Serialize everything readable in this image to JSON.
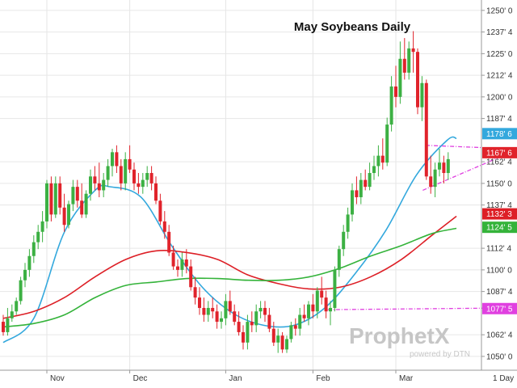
{
  "chart_data": {
    "type": "candlestick",
    "title": "May Soybeans Daily",
    "interval_label": "1 Day",
    "watermark": {
      "brand": "ProphetX",
      "tagline": "powered by DTN"
    },
    "x_tick_labels": [
      "Nov",
      "Dec",
      "Jan",
      "Feb",
      "Mar"
    ],
    "y_tick_labels": [
      "1250' 0",
      "1237' 4",
      "1225' 0",
      "1212' 4",
      "1200' 0",
      "1187' 4",
      "1162' 4",
      "1150' 0",
      "1137' 4",
      "1112' 4",
      "1100' 0",
      "1087' 4",
      "1062' 4",
      "1050' 0"
    ],
    "y_range": [
      1042,
      1255
    ],
    "colors": {
      "up": "#3cb043",
      "down": "#e0232b",
      "ma_blue": "#33a8dd",
      "ma_red": "#dd1f26",
      "ma_green": "#34b33a",
      "trend": "#e040e0"
    },
    "last_value_labels": [
      {
        "text": "1178' 6",
        "value": 1178.75,
        "color": "#33a8dd"
      },
      {
        "text": "1167' 6",
        "value": 1167.75,
        "color": "#e0232b"
      },
      {
        "text": "1132' 3",
        "value": 1132.375,
        "color": "#dd1f26"
      },
      {
        "text": "1124' 5",
        "value": 1124.625,
        "color": "#34b33a"
      },
      {
        "text": "1077' 5",
        "value": 1077.625,
        "color": "#e040e0"
      }
    ],
    "moving_averages": [
      {
        "color": "#33a8dd",
        "x": [
          0,
          10,
          20,
          30,
          35,
          45,
          55,
          65,
          75,
          85,
          95,
          105,
          115,
          125,
          135,
          145,
          148
        ],
        "values": [
          1058,
          1072,
          1122,
          1146,
          1148,
          1142,
          1114,
          1090,
          1075,
          1068,
          1068,
          1078,
          1098,
          1123,
          1155,
          1175,
          1176
        ]
      },
      {
        "color": "#dd1f26",
        "x": [
          0,
          10,
          20,
          30,
          40,
          50,
          60,
          70,
          80,
          90,
          100,
          110,
          120,
          130,
          140,
          148
        ],
        "values": [
          1072,
          1076,
          1084,
          1096,
          1106,
          1111,
          1110,
          1106,
          1097,
          1092,
          1089,
          1090,
          1096,
          1106,
          1120,
          1131
        ]
      },
      {
        "color": "#34b33a",
        "x": [
          0,
          10,
          20,
          30,
          40,
          50,
          60,
          70,
          80,
          90,
          100,
          110,
          120,
          130,
          140,
          148
        ],
        "values": [
          1067,
          1069,
          1074,
          1084,
          1091,
          1093,
          1095,
          1095,
          1094,
          1094,
          1096,
          1101,
          1108,
          1114,
          1121,
          1124
        ]
      }
    ],
    "trend_lines": [
      {
        "x": [
          138,
          150
        ],
        "values": [
          1172,
          1170
        ]
      },
      {
        "x": [
          137,
          150
        ],
        "values": [
          1146,
          1168
        ]
      },
      {
        "x": [
          106,
          150
        ],
        "values": [
          1077,
          1078
        ]
      }
    ],
    "candles": [
      [
        0,
        1070,
        1074,
        1062,
        1064
      ],
      [
        1,
        1064,
        1078,
        1062,
        1072
      ],
      [
        2,
        1072,
        1080,
        1070,
        1076
      ],
      [
        3,
        1076,
        1084,
        1074,
        1082
      ],
      [
        4,
        1082,
        1096,
        1080,
        1094
      ],
      [
        5,
        1094,
        1104,
        1090,
        1100
      ],
      [
        6,
        1100,
        1112,
        1096,
        1108
      ],
      [
        7,
        1108,
        1120,
        1104,
        1116
      ],
      [
        8,
        1116,
        1126,
        1112,
        1122
      ],
      [
        9,
        1122,
        1134,
        1116,
        1128
      ],
      [
        10,
        1128,
        1152,
        1124,
        1150
      ],
      [
        11,
        1150,
        1154,
        1128,
        1132
      ],
      [
        12,
        1132,
        1154,
        1130,
        1150
      ],
      [
        13,
        1150,
        1154,
        1132,
        1136
      ],
      [
        14,
        1136,
        1144,
        1122,
        1126
      ],
      [
        15,
        1126,
        1140,
        1124,
        1138
      ],
      [
        16,
        1138,
        1152,
        1134,
        1148
      ],
      [
        17,
        1148,
        1152,
        1136,
        1140
      ],
      [
        18,
        1140,
        1150,
        1130,
        1132
      ],
      [
        19,
        1132,
        1146,
        1130,
        1144
      ],
      [
        20,
        1144,
        1158,
        1140,
        1154
      ],
      [
        21,
        1154,
        1160,
        1146,
        1150
      ],
      [
        22,
        1150,
        1162,
        1142,
        1146
      ],
      [
        23,
        1146,
        1156,
        1142,
        1152
      ],
      [
        24,
        1152,
        1164,
        1148,
        1160
      ],
      [
        25,
        1160,
        1170,
        1154,
        1168
      ],
      [
        26,
        1168,
        1172,
        1156,
        1160
      ],
      [
        27,
        1160,
        1164,
        1146,
        1150
      ],
      [
        28,
        1150,
        1168,
        1146,
        1164
      ],
      [
        29,
        1164,
        1172,
        1156,
        1158
      ],
      [
        30,
        1158,
        1162,
        1146,
        1150
      ],
      [
        31,
        1150,
        1156,
        1144,
        1148
      ],
      [
        32,
        1148,
        1156,
        1144,
        1152
      ],
      [
        33,
        1152,
        1160,
        1148,
        1156
      ],
      [
        34,
        1156,
        1160,
        1146,
        1150
      ],
      [
        35,
        1150,
        1154,
        1138,
        1140
      ],
      [
        36,
        1140,
        1144,
        1126,
        1128
      ],
      [
        37,
        1128,
        1134,
        1118,
        1122
      ],
      [
        38,
        1122,
        1126,
        1108,
        1110
      ],
      [
        39,
        1110,
        1114,
        1100,
        1102
      ],
      [
        40,
        1102,
        1106,
        1096,
        1100
      ],
      [
        41,
        1100,
        1110,
        1096,
        1106
      ],
      [
        42,
        1106,
        1112,
        1098,
        1102
      ],
      [
        43,
        1102,
        1106,
        1088,
        1090
      ],
      [
        44,
        1090,
        1096,
        1080,
        1084
      ],
      [
        45,
        1084,
        1090,
        1074,
        1078
      ],
      [
        46,
        1078,
        1084,
        1070,
        1074
      ],
      [
        47,
        1074,
        1082,
        1070,
        1078
      ],
      [
        48,
        1078,
        1084,
        1072,
        1076
      ],
      [
        49,
        1076,
        1080,
        1066,
        1070
      ],
      [
        50,
        1070,
        1076,
        1066,
        1072
      ],
      [
        51,
        1072,
        1086,
        1068,
        1082
      ],
      [
        52,
        1082,
        1088,
        1074,
        1076
      ],
      [
        53,
        1076,
        1080,
        1068,
        1070
      ],
      [
        54,
        1070,
        1076,
        1062,
        1064
      ],
      [
        55,
        1064,
        1068,
        1054,
        1058
      ],
      [
        56,
        1058,
        1074,
        1054,
        1070
      ],
      [
        57,
        1070,
        1076,
        1064,
        1068
      ],
      [
        58,
        1068,
        1080,
        1064,
        1076
      ],
      [
        59,
        1076,
        1082,
        1072,
        1078
      ],
      [
        60,
        1078,
        1082,
        1070,
        1074
      ],
      [
        61,
        1074,
        1078,
        1064,
        1066
      ],
      [
        62,
        1066,
        1070,
        1056,
        1058
      ],
      [
        63,
        1058,
        1066,
        1052,
        1062
      ],
      [
        64,
        1062,
        1064,
        1052,
        1054
      ],
      [
        65,
        1054,
        1062,
        1052,
        1060
      ],
      [
        66,
        1060,
        1070,
        1058,
        1068
      ],
      [
        67,
        1068,
        1072,
        1062,
        1066
      ],
      [
        68,
        1066,
        1078,
        1062,
        1074
      ],
      [
        69,
        1074,
        1080,
        1070,
        1072
      ],
      [
        70,
        1072,
        1082,
        1068,
        1080
      ],
      [
        71,
        1080,
        1086,
        1072,
        1076
      ],
      [
        72,
        1076,
        1090,
        1072,
        1088
      ],
      [
        73,
        1088,
        1096,
        1080,
        1084
      ],
      [
        74,
        1084,
        1088,
        1072,
        1076
      ],
      [
        75,
        1076,
        1082,
        1068,
        1078
      ],
      [
        76,
        1078,
        1102,
        1076,
        1100
      ],
      [
        77,
        1100,
        1114,
        1096,
        1112
      ],
      [
        78,
        1112,
        1126,
        1108,
        1122
      ],
      [
        79,
        1122,
        1136,
        1118,
        1132
      ],
      [
        80,
        1132,
        1150,
        1128,
        1146
      ],
      [
        81,
        1146,
        1154,
        1138,
        1142
      ],
      [
        82,
        1142,
        1156,
        1138,
        1152
      ],
      [
        83,
        1152,
        1158,
        1146,
        1148
      ],
      [
        84,
        1148,
        1162,
        1146,
        1156
      ],
      [
        85,
        1156,
        1166,
        1152,
        1160
      ],
      [
        86,
        1160,
        1172,
        1154,
        1166
      ],
      [
        87,
        1166,
        1176,
        1158,
        1162
      ],
      [
        88,
        1162,
        1188,
        1160,
        1184
      ],
      [
        89,
        1184,
        1212,
        1180,
        1206
      ],
      [
        90,
        1206,
        1218,
        1194,
        1200
      ],
      [
        91,
        1200,
        1232,
        1196,
        1222
      ],
      [
        92,
        1222,
        1234,
        1210,
        1214
      ],
      [
        93,
        1214,
        1232,
        1210,
        1228
      ],
      [
        94,
        1228,
        1238,
        1214,
        1226
      ],
      [
        95,
        1226,
        1228,
        1190,
        1194
      ],
      [
        96,
        1194,
        1212,
        1186,
        1208
      ],
      [
        97,
        1208,
        1210,
        1152,
        1154
      ],
      [
        98,
        1154,
        1166,
        1144,
        1148
      ],
      [
        99,
        1148,
        1162,
        1142,
        1158
      ],
      [
        100,
        1158,
        1170,
        1154,
        1162
      ],
      [
        101,
        1162,
        1166,
        1150,
        1156
      ],
      [
        102,
        1156,
        1168,
        1152,
        1164
      ]
    ]
  }
}
